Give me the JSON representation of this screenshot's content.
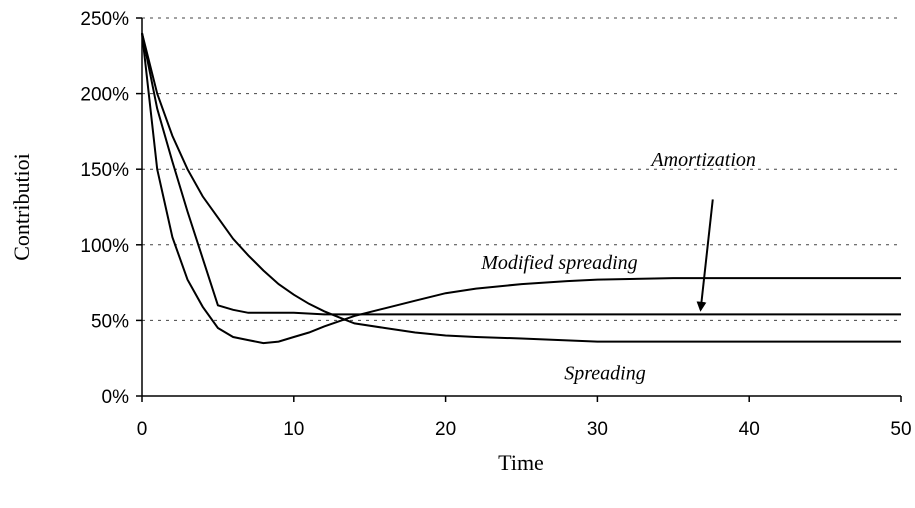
{
  "chart_data": {
    "type": "line",
    "xlabel": "Time",
    "ylabel": "Contributioi",
    "xlim": [
      0,
      50
    ],
    "ylim": [
      0,
      250
    ],
    "xticks": [
      "0",
      "10",
      "20",
      "30",
      "40",
      "50"
    ],
    "yticks": [
      "0%",
      "50%",
      "100%",
      "150%",
      "200%",
      "250%"
    ],
    "grid": "horizontal dashed",
    "series": [
      {
        "x": [
          0,
          1,
          2,
          3,
          4,
          5,
          6,
          7,
          8,
          9,
          10,
          11,
          12,
          14,
          16,
          18,
          20,
          22,
          25,
          28,
          30,
          35,
          40,
          45,
          50
        ],
        "y": [
          240,
          150,
          105,
          77,
          59,
          45,
          39,
          37,
          35,
          36,
          39,
          42,
          46,
          53,
          58,
          63,
          68,
          71,
          74,
          76,
          77,
          78,
          78,
          78,
          78
        ]
      },
      {
        "x": [
          0,
          1,
          2,
          3,
          4,
          5,
          6,
          7,
          8,
          9,
          10,
          11,
          12,
          13,
          14,
          16,
          18,
          20,
          22,
          25,
          30,
          35,
          40,
          45,
          50
        ],
        "y": [
          240,
          200,
          172,
          150,
          132,
          118,
          104,
          93,
          83,
          74,
          67,
          61,
          56,
          52,
          48,
          45,
          42,
          40,
          39,
          38,
          36,
          36,
          36,
          36,
          36
        ]
      },
      {
        "x": [
          0,
          1,
          2,
          3,
          4,
          5,
          6,
          7,
          8,
          10,
          12,
          15,
          20,
          30,
          40,
          50
        ],
        "y": [
          240,
          190,
          155,
          122,
          91,
          60,
          57,
          55,
          55,
          55,
          54,
          54,
          54,
          54,
          54,
          54
        ]
      }
    ],
    "annotations": [
      {
        "text": "Amortization",
        "x": 37,
        "y": 152
      },
      {
        "text": "Modified spreading",
        "x": 27.5,
        "y": 84
      },
      {
        "text": "Spreading",
        "x": 30.5,
        "y": 11
      }
    ],
    "arrow": {
      "from": [
        37.6,
        130
      ],
      "to": [
        36.8,
        57
      ]
    }
  }
}
